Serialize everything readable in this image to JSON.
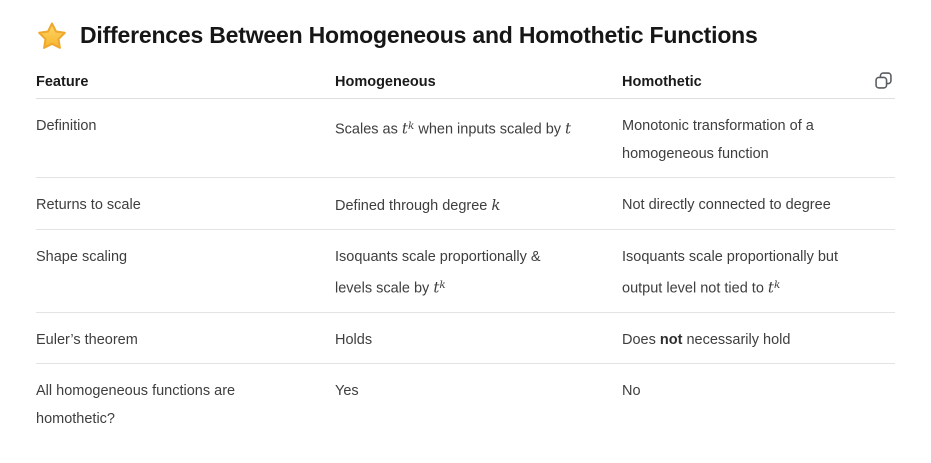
{
  "page": {
    "title": "Differences Between Homogeneous and Homothetic Functions"
  },
  "icons": {
    "star": "star-emoji",
    "copy": "copy-icon"
  },
  "colors": {
    "star_top": "#ffd667",
    "star_bottom": "#f7b52e",
    "star_stroke": "#eda82d",
    "icon_gray": "#5a5d61",
    "separator": "#e3e3e4",
    "title_text": "#161616",
    "header_text": "#1a1a1a",
    "body_text": "#3e3e3e"
  },
  "table": {
    "columns": [
      "Feature",
      "Homogeneous",
      "Homothetic"
    ],
    "rows": [
      {
        "feature": [
          {
            "s": "plain",
            "t": "Definition"
          }
        ],
        "homogeneous": [
          {
            "s": "plain",
            "t": "Scales as "
          },
          {
            "s": "math",
            "t": "t"
          },
          {
            "s": "sup",
            "t": "k"
          },
          {
            "s": "plain",
            "t": " when inputs scaled by "
          },
          {
            "s": "math",
            "t": "t"
          }
        ],
        "homothetic": [
          {
            "s": "plain",
            "t": "Monotonic transformation of a"
          },
          {
            "s": "break"
          },
          {
            "s": "plain",
            "t": "homogeneous function"
          }
        ]
      },
      {
        "feature": [
          {
            "s": "plain",
            "t": "Returns to scale"
          }
        ],
        "homogeneous": [
          {
            "s": "plain",
            "t": "Defined through degree "
          },
          {
            "s": "math",
            "t": "k"
          }
        ],
        "homothetic": [
          {
            "s": "plain",
            "t": "Not directly connected to degree"
          }
        ]
      },
      {
        "feature": [
          {
            "s": "plain",
            "t": "Shape scaling"
          }
        ],
        "homogeneous": [
          {
            "s": "plain",
            "t": "Isoquants scale proportionally &"
          },
          {
            "s": "break"
          },
          {
            "s": "plain",
            "t": "levels scale by "
          },
          {
            "s": "math",
            "t": "t"
          },
          {
            "s": "sup",
            "t": "k"
          }
        ],
        "homothetic": [
          {
            "s": "plain",
            "t": "Isoquants scale proportionally but"
          },
          {
            "s": "break"
          },
          {
            "s": "plain",
            "t": "output level not tied to "
          },
          {
            "s": "math",
            "t": "t"
          },
          {
            "s": "sup",
            "t": "k"
          }
        ]
      },
      {
        "feature": [
          {
            "s": "plain",
            "t": "Euler’s theorem"
          }
        ],
        "homogeneous": [
          {
            "s": "plain",
            "t": "Holds"
          }
        ],
        "homothetic": [
          {
            "s": "plain",
            "t": "Does "
          },
          {
            "s": "bold",
            "t": "not"
          },
          {
            "s": "plain",
            "t": " necessarily hold"
          }
        ]
      },
      {
        "feature": [
          {
            "s": "plain",
            "t": "All homogeneous functions are"
          },
          {
            "s": "break"
          },
          {
            "s": "plain",
            "t": "homothetic?"
          }
        ],
        "homogeneous": [
          {
            "s": "plain",
            "t": "Yes"
          }
        ],
        "homothetic": [
          {
            "s": "plain",
            "t": "No"
          }
        ]
      }
    ]
  }
}
